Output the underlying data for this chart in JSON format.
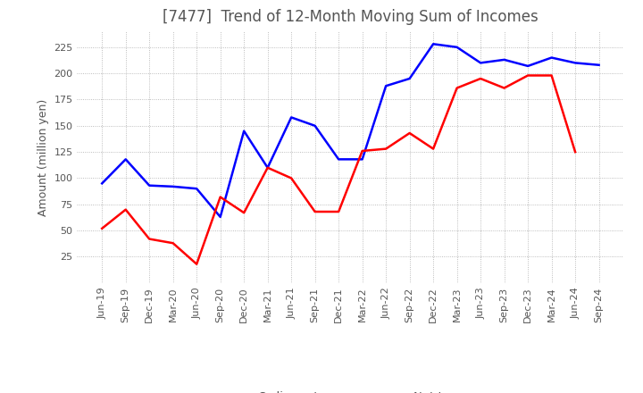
{
  "title": "[7477]  Trend of 12-Month Moving Sum of Incomes",
  "ylabel": "Amount (million yen)",
  "ylim": [
    0,
    240
  ],
  "yticks": [
    25,
    50,
    75,
    100,
    125,
    150,
    175,
    200,
    225
  ],
  "x_labels": [
    "Jun-19",
    "Sep-19",
    "Dec-19",
    "Mar-20",
    "Jun-20",
    "Sep-20",
    "Dec-20",
    "Mar-21",
    "Jun-21",
    "Sep-21",
    "Dec-21",
    "Mar-22",
    "Jun-22",
    "Sep-22",
    "Dec-22",
    "Mar-23",
    "Jun-23",
    "Sep-23",
    "Dec-23",
    "Mar-24",
    "Jun-24",
    "Sep-24"
  ],
  "ordinary_income": [
    95,
    118,
    93,
    92,
    90,
    63,
    145,
    110,
    158,
    150,
    118,
    118,
    188,
    195,
    228,
    225,
    210,
    213,
    207,
    215,
    210,
    208
  ],
  "net_income": [
    52,
    70,
    42,
    38,
    18,
    82,
    67,
    110,
    100,
    68,
    68,
    126,
    128,
    143,
    128,
    186,
    195,
    186,
    198,
    198,
    125,
    null
  ],
  "ordinary_color": "#0000ff",
  "net_color": "#ff0000",
  "grid_color": "#aaaaaa",
  "background_color": "#ffffff",
  "title_color": "#555555",
  "title_fontsize": 12,
  "label_fontsize": 9,
  "tick_fontsize": 8,
  "legend_fontsize": 9.5
}
